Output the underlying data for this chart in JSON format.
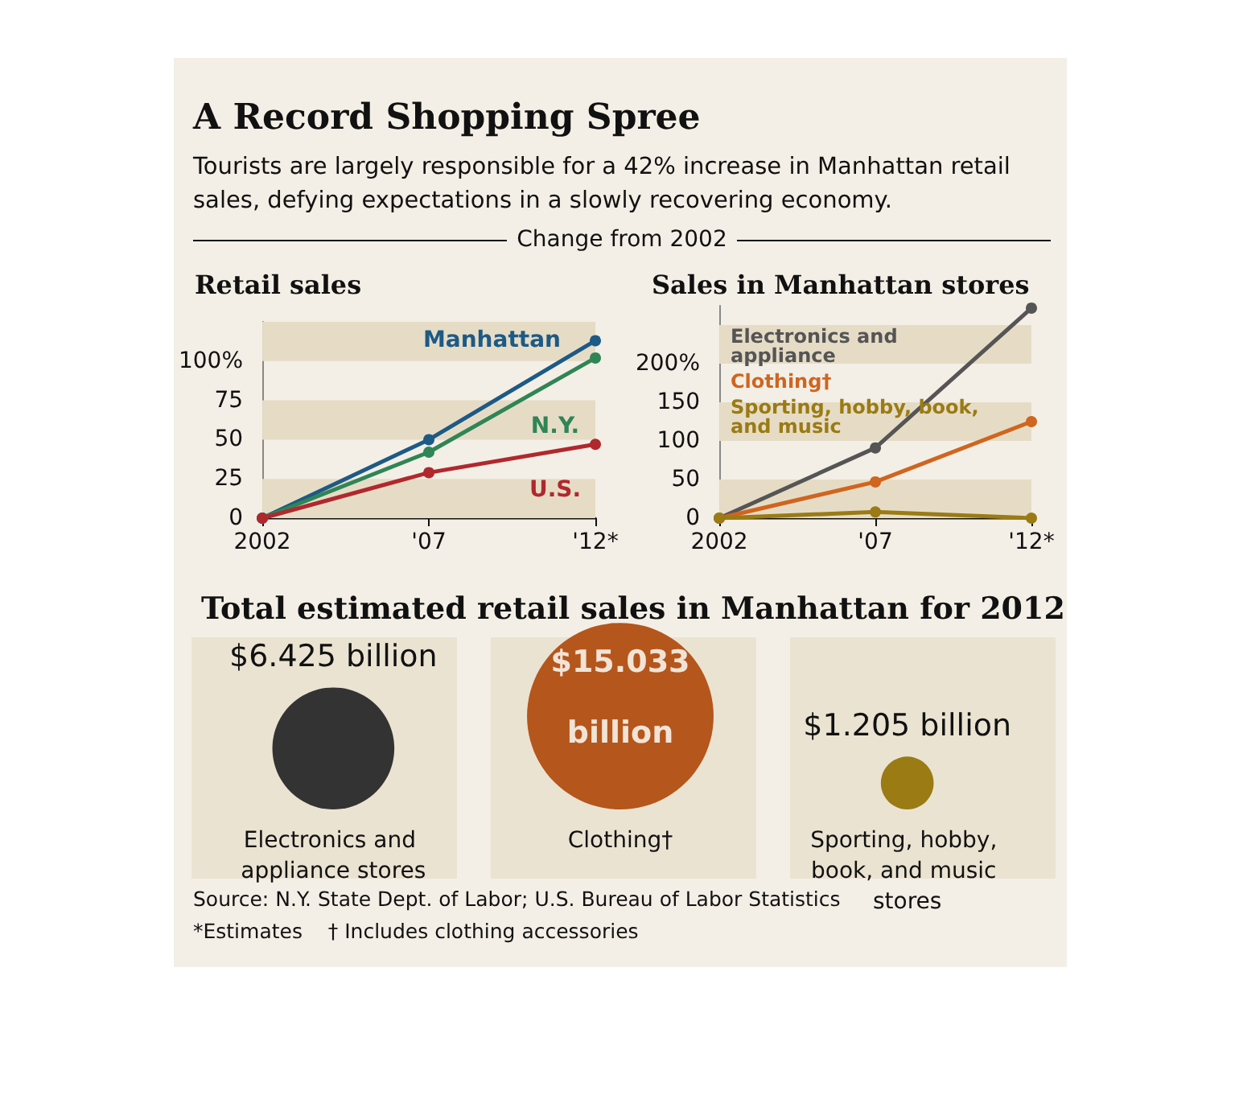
{
  "chart_data": [
    {
      "type": "other",
      "title": "A Record Shopping Spree",
      "subtitle": "Tourists are largely responsible for a 42% increase in Manhattan retail sales, defying expectations in a slowly recovering economy.",
      "annotations": [
        "Change from 2002"
      ]
    },
    {
      "type": "line",
      "title": "Retail sales",
      "categories": [
        "2002",
        "'07",
        "'12*"
      ],
      "series": [
        {
          "name": "Manhattan",
          "color": "#1d5a85",
          "values": [
            0,
            50,
            113
          ]
        },
        {
          "name": "N.Y.",
          "color": "#2f8556",
          "values": [
            0,
            42,
            102
          ]
        },
        {
          "name": "U.S.",
          "color": "#b0282e",
          "values": [
            0,
            29,
            47
          ]
        }
      ],
      "ylim": [
        0,
        125
      ],
      "yticks": [
        0,
        25,
        50,
        75,
        {
          "value": 100,
          "label": "100%"
        }
      ],
      "marker": "circle",
      "bands": [
        {
          "axis": "y",
          "from": 0,
          "to": 25,
          "color": "#e6dcc6"
        },
        {
          "axis": "y",
          "from": 50,
          "to": 75,
          "color": "#e6dcc6"
        },
        {
          "axis": "y",
          "from": 100,
          "to": 125,
          "color": "#e6dcc6"
        }
      ]
    },
    {
      "type": "line",
      "title": "Sales in Manhattan stores",
      "categories": [
        "2002",
        "'07",
        "'12*"
      ],
      "series": [
        {
          "name": "Electronics and appliance",
          "color": "#555555",
          "values": [
            0,
            91,
            272
          ]
        },
        {
          "name": "Clothing†",
          "color": "#d0651f",
          "values": [
            0,
            47,
            125
          ]
        },
        {
          "name": "Sporting, hobby, book, and music",
          "color": "#9a7b14",
          "values": [
            0,
            8,
            0
          ]
        }
      ],
      "ylim": [
        0,
        275
      ],
      "yticks": [
        0,
        50,
        100,
        150,
        {
          "value": 200,
          "label": "200%"
        }
      ],
      "marker": "circle",
      "legend": "top left",
      "bands": [
        {
          "axis": "y",
          "from": 0,
          "to": 50,
          "color": "#e6dcc6"
        },
        {
          "axis": "y",
          "from": 100,
          "to": 150,
          "color": "#e6dcc6"
        },
        {
          "axis": "y",
          "from": 200,
          "to": 250,
          "color": "#e6dcc6"
        }
      ]
    },
    {
      "type": "other",
      "title": "Total estimated retail sales in Manhattan for 2012",
      "categories": [
        "Electronics and appliance stores",
        "Clothing†",
        "Sporting, hobby, book, and music stores"
      ],
      "values": [
        6.425,
        15.033,
        1.205
      ],
      "value_labels": [
        "$6.425 billion",
        "$15.033 billion",
        "$1.205 billion"
      ],
      "colors": [
        "#333333",
        "#b5561c",
        "#9a7b14"
      ],
      "annotations": [
        "Source: N.Y. State Dept. of Labor; U.S. Bureau of Labor Statistics",
        "*Estimates    † Includes clothing accessories"
      ]
    }
  ]
}
